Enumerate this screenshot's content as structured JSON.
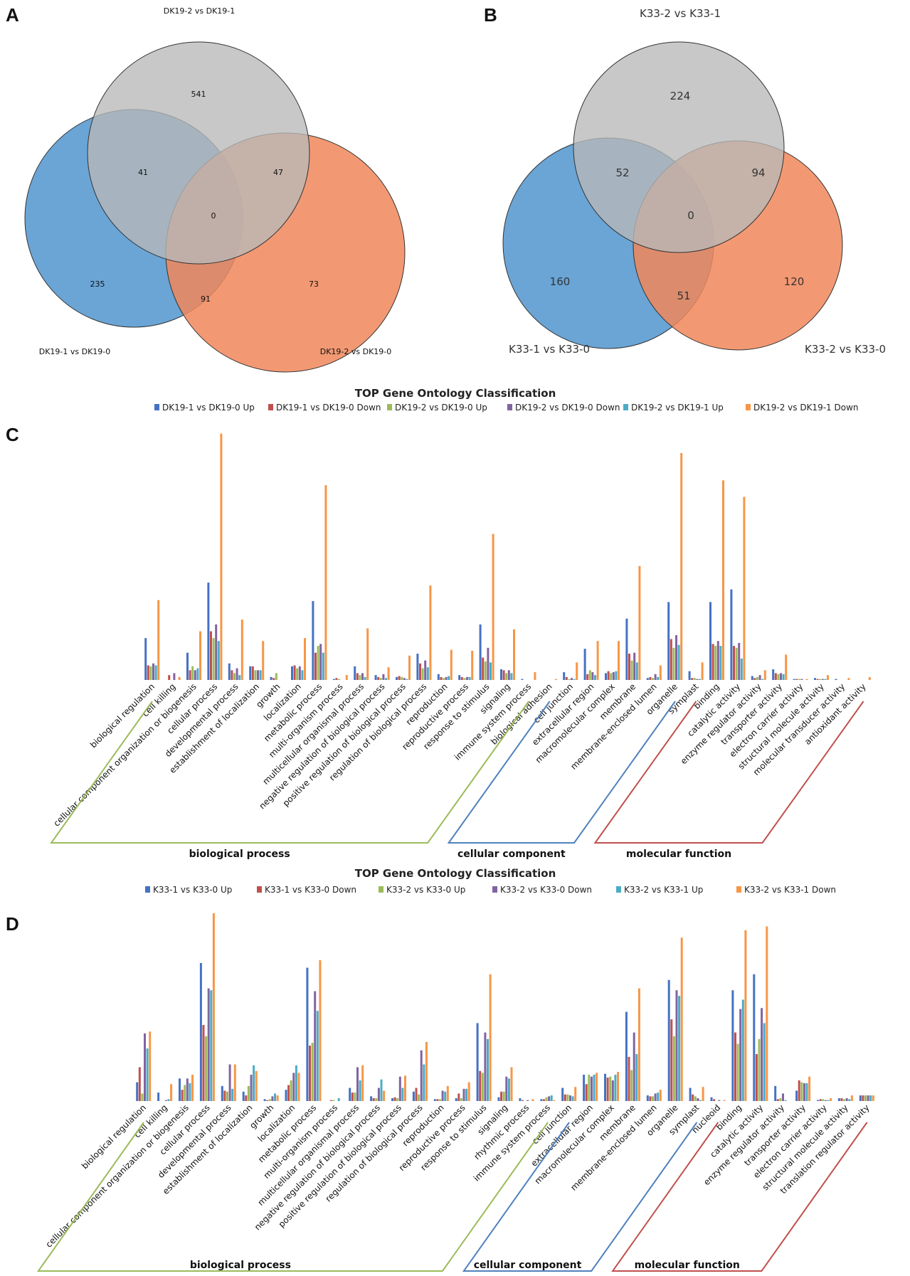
{
  "panels": {
    "a": "A",
    "b": "B",
    "c": "C",
    "d": "D"
  },
  "venn_a": {
    "top_label": "DK19-2 vs DK19-1",
    "left_label": "DK19-1 vs DK19-0",
    "right_label": "DK19-2 vs DK19-0",
    "top_only": "541",
    "left_only": "235",
    "right_only": "73",
    "top_left": "41",
    "top_right": "47",
    "left_right": "91",
    "center": "0"
  },
  "venn_b": {
    "top_label": "K33-2 vs K33-1",
    "left_label": "K33-1 vs K33-0",
    "right_label": "K33-2 vs K33-0",
    "top_only": "224",
    "left_only": "160",
    "right_only": "120",
    "top_left": "52",
    "top_right": "94",
    "left_right": "51",
    "center": "0"
  },
  "colors": {
    "series": [
      "#4472C4",
      "#C0504D",
      "#9BBB59",
      "#8064A2",
      "#4BACC6",
      "#F79646"
    ],
    "bp": "#9BBB59",
    "cc": "#4F81BD",
    "mf": "#C0504D",
    "venn_blue": "#6AA5D6",
    "venn_gray": "#BDBDBD",
    "venn_orange": "#F0875A"
  },
  "chart_data": [
    {
      "type": "bar",
      "title": "TOP Gene Ontology Classification",
      "series_names": [
        "DK19-1 vs DK19-0 Up",
        "DK19-1 vs DK19-0 Down",
        "DK19-2 vs DK19-0 Up",
        "DK19-2 vs DK19-0 Down",
        "DK19-2 vs DK19-1 Up",
        "DK19-2 vs DK19-1 Down"
      ],
      "categories": [
        "biological regulation",
        "cell killing",
        "cellular component organization or biogenesis",
        "cellular process",
        "developmental process",
        "establishment of localization",
        "growth",
        "localization",
        "metabolic process",
        "multi-organism process",
        "multicellular organismal process",
        "negative regulation of biological process",
        "positive regulation of biological process",
        "regulation of biological process",
        "reproduction",
        "reproductive process",
        "response to stimulus",
        "signaling",
        "immune system process",
        "biological adhesion",
        "cell junction",
        "extracellular region",
        "macromolecular complex",
        "membrane",
        "membrane-enclosed lumen",
        "organelle",
        "symplast",
        "binding",
        "catalytic activity",
        "enzyme regulator activity",
        "transporter activity",
        "electron carrier activity",
        "structural molecule activity",
        "molecular transducer activity",
        "antioxidant activity"
      ],
      "values": [
        [
          43,
          15,
          14,
          17,
          15,
          82
        ],
        [
          0,
          5,
          0,
          7,
          0,
          3
        ],
        [
          28,
          10,
          14,
          10,
          12,
          50
        ],
        [
          100,
          50,
          43,
          57,
          40,
          253
        ],
        [
          17,
          10,
          7,
          12,
          5,
          62
        ],
        [
          14,
          14,
          10,
          10,
          10,
          40
        ],
        [
          3,
          2,
          7,
          0,
          0,
          0
        ],
        [
          14,
          15,
          12,
          14,
          10,
          43
        ],
        [
          81,
          28,
          35,
          37,
          28,
          200
        ],
        [
          1,
          2,
          1,
          0,
          0,
          5
        ],
        [
          14,
          7,
          5,
          7,
          3,
          53
        ],
        [
          5,
          3,
          2,
          6,
          2,
          13
        ],
        [
          3,
          4,
          3,
          2,
          1,
          25
        ],
        [
          27,
          17,
          12,
          20,
          13,
          97
        ],
        [
          6,
          3,
          2,
          3,
          4,
          31
        ],
        [
          5,
          3,
          2,
          3,
          3,
          30
        ],
        [
          57,
          23,
          19,
          33,
          18,
          150
        ],
        [
          11,
          10,
          7,
          10,
          7,
          52
        ],
        [
          1,
          0,
          0,
          0,
          0,
          8
        ],
        [
          0,
          0,
          0,
          0,
          0,
          1
        ],
        [
          8,
          3,
          1,
          2,
          1,
          18
        ],
        [
          32,
          6,
          10,
          8,
          5,
          40
        ],
        [
          7,
          9,
          7,
          8,
          9,
          40
        ],
        [
          63,
          27,
          20,
          28,
          18,
          117
        ],
        [
          2,
          3,
          2,
          6,
          3,
          15
        ],
        [
          80,
          42,
          33,
          46,
          36,
          233
        ],
        [
          9,
          2,
          2,
          1,
          1,
          18
        ],
        [
          80,
          37,
          35,
          40,
          35,
          205
        ],
        [
          93,
          35,
          33,
          38,
          22,
          188
        ],
        [
          4,
          2,
          3,
          5,
          1,
          10
        ],
        [
          11,
          7,
          6,
          7,
          6,
          26
        ],
        [
          1,
          1,
          1,
          1,
          0,
          1
        ],
        [
          2,
          1,
          1,
          1,
          1,
          5
        ],
        [
          1,
          0,
          0,
          0,
          0,
          2
        ],
        [
          0,
          0,
          0,
          0,
          0,
          3
        ]
      ],
      "ymax": 260,
      "groups": [
        {
          "name": "biological process",
          "first": 0,
          "last": 18
        },
        {
          "name": "cellular component",
          "first": 19,
          "last": 25
        },
        {
          "name": "molecular function",
          "first": 26,
          "last": 34
        }
      ]
    },
    {
      "type": "bar",
      "title": "TOP Gene Ontology Classification",
      "series_names": [
        "K33-1 vs K33-0 Up",
        "K33-1 vs K33-0 Down",
        "K33-2 vs K33-0 Up",
        "K33-2 vs K33-0 Down",
        "K33-2 vs K33-1 Up",
        "K33-2 vs K33-1 Down"
      ],
      "categories": [
        "biological regulation",
        "cell killing",
        "cellular component organization or biogenesis",
        "cellular process",
        "developmental process",
        "establishment of localization",
        "growth",
        "localization",
        "metabolic process",
        "multi-organism process",
        "multicellular organismal process",
        "negative regulation of biological process",
        "positive regulation of biological process",
        "regulation of biological process",
        "reproduction",
        "reproductive process",
        "response to stimulus",
        "signaling",
        "rhythmic process",
        "immune system process",
        "cell junction",
        "extracellular region",
        "macromolecular complex",
        "membrane",
        "membrane-enclosed lumen",
        "organelle",
        "symplast",
        "nucleoid",
        "binding",
        "catalytic activity",
        "enzyme regulator activity",
        "transporter activity",
        "electron carrier activity",
        "structural molecule activity",
        "translation regulator activity"
      ],
      "values": [
        [
          20,
          36,
          8,
          72,
          56,
          74
        ],
        [
          9,
          0,
          0,
          1,
          2,
          18
        ],
        [
          24,
          12,
          17,
          24,
          19,
          28
        ],
        [
          147,
          81,
          69,
          120,
          118,
          200
        ],
        [
          16,
          11,
          10,
          39,
          13,
          39
        ],
        [
          10,
          6,
          16,
          28,
          38,
          32
        ],
        [
          2,
          1,
          2,
          5,
          8,
          6
        ],
        [
          12,
          17,
          22,
          30,
          38,
          30
        ],
        [
          142,
          59,
          62,
          117,
          96,
          150
        ],
        [
          0,
          1,
          1,
          0,
          3,
          0
        ],
        [
          14,
          9,
          9,
          36,
          22,
          38
        ],
        [
          5,
          3,
          3,
          14,
          23,
          11
        ],
        [
          3,
          4,
          3,
          26,
          14,
          27
        ],
        [
          10,
          14,
          7,
          54,
          39,
          63
        ],
        [
          2,
          2,
          2,
          11,
          10,
          16
        ],
        [
          3,
          8,
          3,
          13,
          13,
          20
        ],
        [
          83,
          32,
          30,
          73,
          66,
          135
        ],
        [
          4,
          10,
          10,
          26,
          24,
          36
        ],
        [
          3,
          1,
          0,
          1,
          0,
          2
        ],
        [
          2,
          2,
          4,
          5,
          6,
          1
        ],
        [
          14,
          7,
          7,
          6,
          5,
          15
        ],
        [
          28,
          18,
          28,
          26,
          28,
          30
        ],
        [
          29,
          25,
          26,
          22,
          28,
          31
        ],
        [
          95,
          47,
          33,
          73,
          50,
          120
        ],
        [
          6,
          5,
          5,
          8,
          9,
          12
        ],
        [
          129,
          87,
          69,
          118,
          112,
          174
        ],
        [
          14,
          7,
          5,
          3,
          1,
          15
        ],
        [
          4,
          2,
          0,
          1,
          0,
          1
        ],
        [
          118,
          73,
          61,
          98,
          108,
          182
        ],
        [
          135,
          50,
          66,
          99,
          83,
          186
        ],
        [
          16,
          2,
          3,
          8,
          1,
          0
        ],
        [
          11,
          22,
          20,
          19,
          19,
          26
        ],
        [
          1,
          2,
          2,
          1,
          1,
          3
        ],
        [
          3,
          3,
          2,
          3,
          2,
          6
        ],
        [
          6,
          6,
          6,
          6,
          6,
          6
        ]
      ],
      "ymax": 200,
      "groups": [
        {
          "name": "biological process",
          "first": 0,
          "last": 19
        },
        {
          "name": "cellular component",
          "first": 20,
          "last": 26
        },
        {
          "name": "molecular function",
          "first": 27,
          "last": 34
        }
      ]
    }
  ]
}
